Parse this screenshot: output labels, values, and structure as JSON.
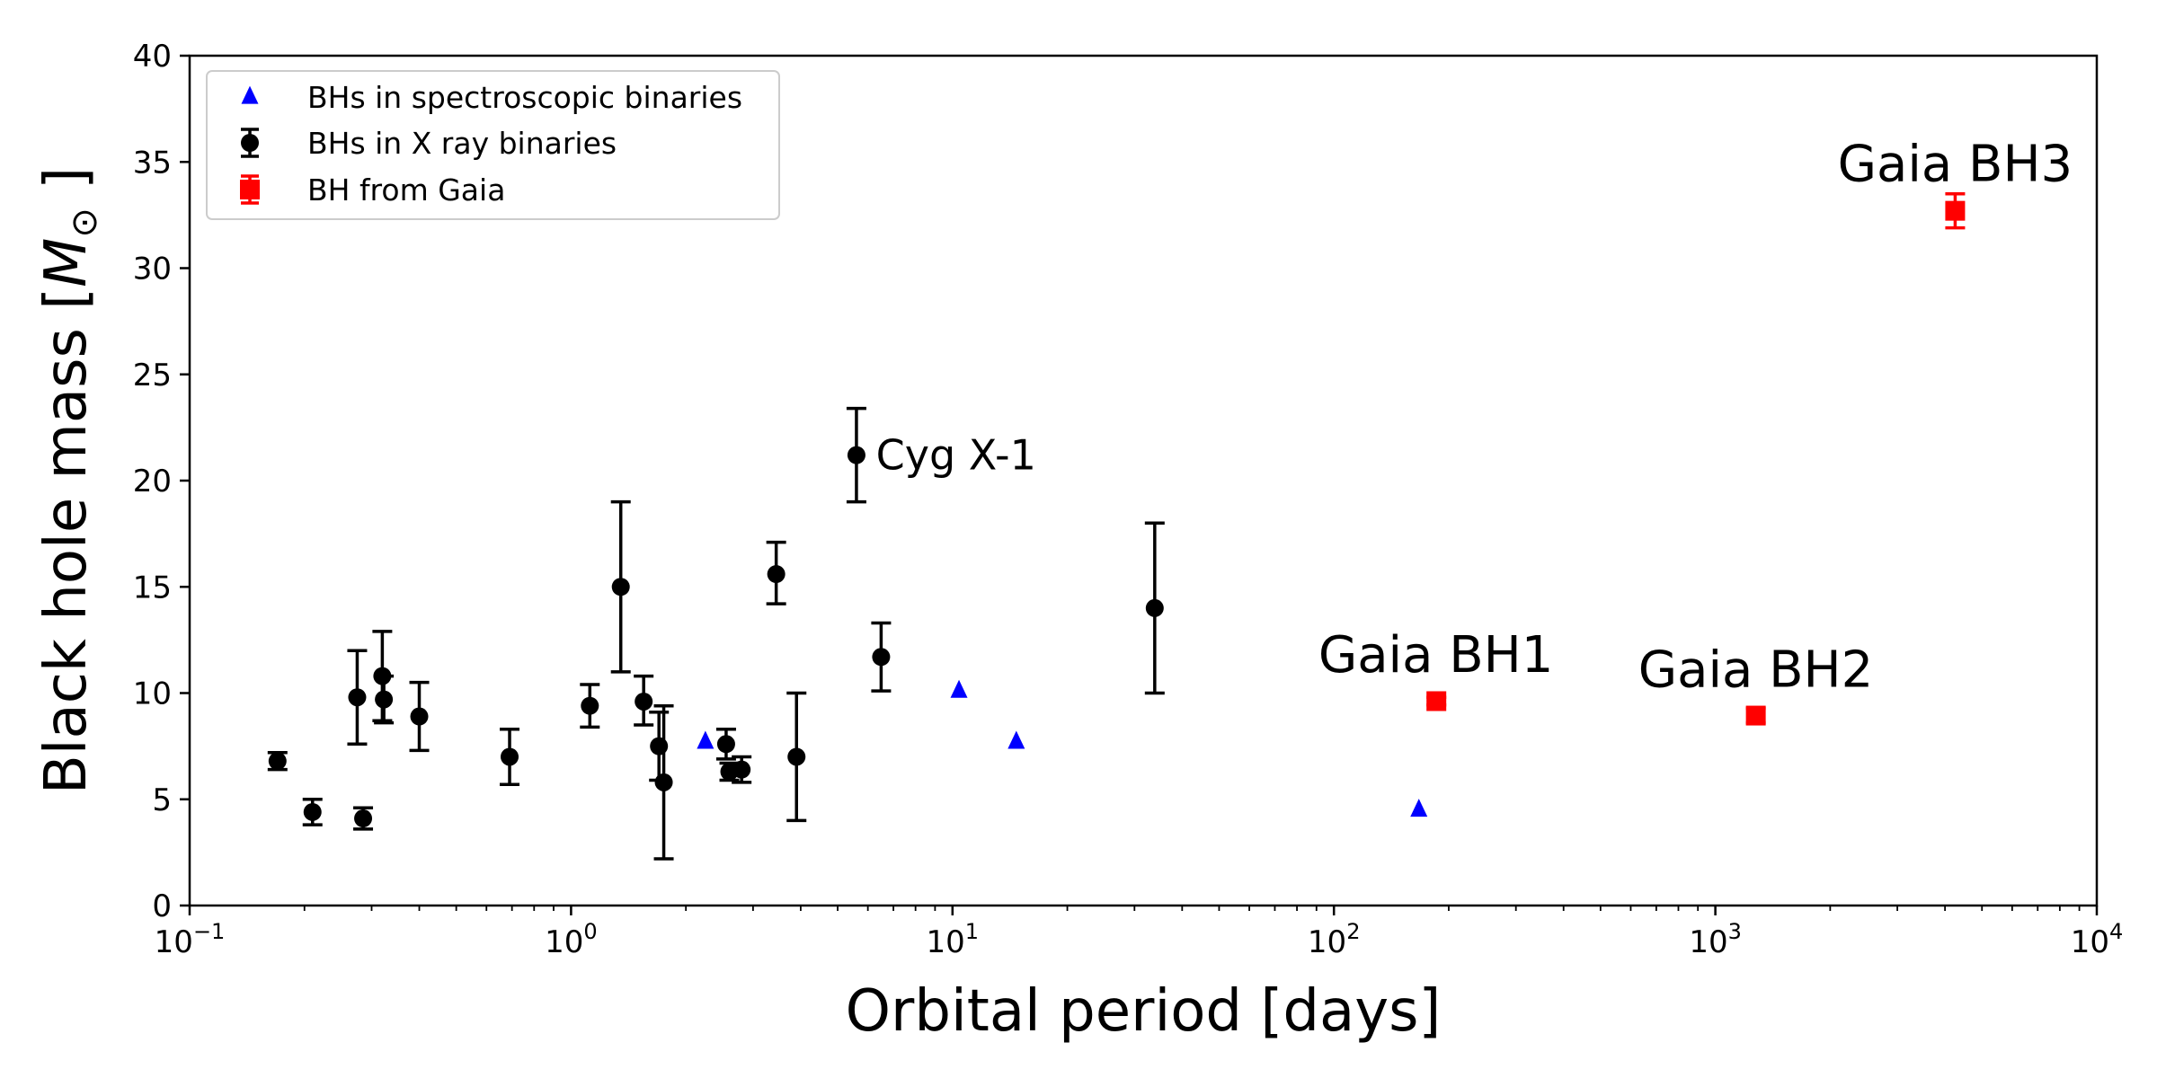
{
  "chart_data": {
    "type": "scatter",
    "xlabel": "Orbital period [days]",
    "ylabel_prefix": "Black hole mass [",
    "ylabel_symbol": "M",
    "ylabel_sub": "⊙",
    "ylabel_suffix": " ]",
    "xscale": "log",
    "xlim": [
      0.1,
      10000
    ],
    "ylim": [
      0,
      40
    ],
    "grid": false,
    "legend_position": "top-left",
    "x_ticks": [
      {
        "value": 0.1,
        "base": "10",
        "exp": "−1"
      },
      {
        "value": 1,
        "base": "10",
        "exp": "0"
      },
      {
        "value": 10,
        "base": "10",
        "exp": "1"
      },
      {
        "value": 100,
        "base": "10",
        "exp": "2"
      },
      {
        "value": 1000,
        "base": "10",
        "exp": "3"
      },
      {
        "value": 10000,
        "base": "10",
        "exp": "4"
      }
    ],
    "y_ticks": [
      0,
      5,
      10,
      15,
      20,
      25,
      30,
      35,
      40
    ],
    "series": [
      {
        "name": "BHs in spectroscopic binaries",
        "color": "#0000ff",
        "marker": "triangle",
        "points": [
          {
            "x": 2.25,
            "y": 7.7
          },
          {
            "x": 10.4,
            "y": 10.1
          },
          {
            "x": 14.7,
            "y": 7.7
          },
          {
            "x": 167,
            "y": 4.5
          }
        ]
      },
      {
        "name": "BHs in X ray binaries",
        "color": "#000000",
        "marker": "circle",
        "points": [
          {
            "x": 0.17,
            "y": 6.8,
            "lo": 6.4,
            "hi": 7.2
          },
          {
            "x": 0.21,
            "y": 4.4,
            "lo": 3.8,
            "hi": 5.0
          },
          {
            "x": 0.275,
            "y": 9.8,
            "lo": 7.6,
            "hi": 12.0
          },
          {
            "x": 0.285,
            "y": 4.1,
            "lo": 3.6,
            "hi": 4.6
          },
          {
            "x": 0.32,
            "y": 10.8,
            "lo": 8.7,
            "hi": 12.9
          },
          {
            "x": 0.323,
            "y": 9.7,
            "lo": 8.6,
            "hi": 10.8
          },
          {
            "x": 0.4,
            "y": 8.9,
            "lo": 7.3,
            "hi": 10.5
          },
          {
            "x": 0.69,
            "y": 7.0,
            "lo": 5.7,
            "hi": 8.3
          },
          {
            "x": 1.12,
            "y": 9.4,
            "lo": 8.4,
            "hi": 10.4
          },
          {
            "x": 1.35,
            "y": 15.0,
            "lo": 11.0,
            "hi": 19.0
          },
          {
            "x": 1.55,
            "y": 9.6,
            "lo": 8.5,
            "hi": 10.8
          },
          {
            "x": 1.7,
            "y": 7.5,
            "lo": 5.9,
            "hi": 9.1
          },
          {
            "x": 1.75,
            "y": 5.8,
            "lo": 2.2,
            "hi": 9.4
          },
          {
            "x": 2.55,
            "y": 7.6,
            "lo": 6.9,
            "hi": 8.3
          },
          {
            "x": 2.6,
            "y": 6.3,
            "lo": 5.9,
            "hi": 6.7
          },
          {
            "x": 2.8,
            "y": 6.4,
            "lo": 5.8,
            "hi": 7.0
          },
          {
            "x": 3.45,
            "y": 15.6,
            "lo": 14.2,
            "hi": 17.1
          },
          {
            "x": 3.9,
            "y": 7.0,
            "lo": 4.0,
            "hi": 10.0
          },
          {
            "x": 5.6,
            "y": 21.2,
            "lo": 19.0,
            "hi": 23.4
          },
          {
            "x": 6.5,
            "y": 11.7,
            "lo": 10.1,
            "hi": 13.3
          },
          {
            "x": 33.9,
            "y": 14.0,
            "lo": 10.0,
            "hi": 18.0
          }
        ]
      },
      {
        "name": "BH from Gaia",
        "color": "#ff0000",
        "marker": "square",
        "points": [
          {
            "x": 185.6,
            "y": 9.62,
            "lo": 9.44,
            "hi": 9.8
          },
          {
            "x": 1276.7,
            "y": 8.94,
            "lo": 8.6,
            "hi": 9.28
          },
          {
            "x": 4253,
            "y": 32.7,
            "lo": 31.9,
            "hi": 33.5
          }
        ]
      }
    ],
    "annotations": [
      {
        "text": "Cyg X-1",
        "x": 6.3,
        "y": 21.2,
        "size": "small",
        "anchor": "start"
      },
      {
        "text": "Gaia BH1",
        "x": 185,
        "y": 11.0,
        "size": "large",
        "anchor": "middle"
      },
      {
        "text": "Gaia BH2",
        "x": 1276,
        "y": 10.3,
        "size": "large",
        "anchor": "middle"
      },
      {
        "text": "Gaia BH3",
        "x": 4253,
        "y": 34.1,
        "size": "large",
        "anchor": "middle"
      }
    ]
  }
}
